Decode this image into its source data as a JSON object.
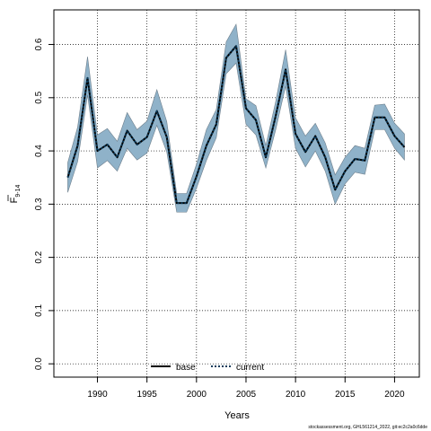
{
  "chart_data": {
    "type": "line",
    "title": "",
    "xlabel": "Years",
    "ylabel_main": "F",
    "ylabel_sub": "9-14",
    "xlim": [
      1985.6,
      2022.5
    ],
    "ylim": [
      -0.025,
      0.665
    ],
    "xticks": [
      1990,
      1995,
      2000,
      2005,
      2010,
      2015,
      2020
    ],
    "yticks": [
      0.0,
      0.1,
      0.2,
      0.3,
      0.4,
      0.5,
      0.6
    ],
    "ytick_labels": [
      "0.0",
      "0.1",
      "0.2",
      "0.3",
      "0.4",
      "0.5",
      "0.6"
    ],
    "grid": true,
    "legend_position": "bottom-center",
    "colors": {
      "ci_band": "#8fb2c9",
      "ci_edge": "#6e7f8c",
      "base": "#000000",
      "current": "#0b3a5a"
    },
    "x": [
      1987,
      1988,
      1989,
      1990,
      1991,
      1992,
      1993,
      1994,
      1995,
      1996,
      1997,
      1998,
      1999,
      2000,
      2001,
      2002,
      2003,
      2004,
      2005,
      2006,
      2007,
      2008,
      2009,
      2010,
      2011,
      2012,
      2013,
      2014,
      2015,
      2016,
      2017,
      2018,
      2019,
      2020,
      2021
    ],
    "series": [
      {
        "name": "base",
        "style": "solid",
        "values": [
          0.35,
          0.41,
          0.537,
          0.4,
          0.412,
          0.388,
          0.438,
          0.412,
          0.426,
          0.475,
          0.426,
          0.302,
          0.302,
          0.352,
          0.41,
          0.45,
          0.575,
          0.597,
          0.48,
          0.458,
          0.388,
          0.466,
          0.553,
          0.432,
          0.398,
          0.428,
          0.388,
          0.327,
          0.362,
          0.385,
          0.382,
          0.463,
          0.463,
          0.428,
          0.407
        ]
      },
      {
        "name": "current",
        "style": "dotted",
        "values": [
          0.35,
          0.41,
          0.537,
          0.4,
          0.412,
          0.388,
          0.438,
          0.412,
          0.426,
          0.475,
          0.426,
          0.302,
          0.302,
          0.352,
          0.41,
          0.45,
          0.575,
          0.597,
          0.48,
          0.458,
          0.388,
          0.466,
          0.553,
          0.432,
          0.398,
          0.428,
          0.388,
          0.327,
          0.362,
          0.385,
          0.382,
          0.463,
          0.463,
          0.428,
          0.407
        ]
      }
    ],
    "ci_lower": [
      0.322,
      0.38,
      0.505,
      0.368,
      0.382,
      0.362,
      0.405,
      0.383,
      0.396,
      0.448,
      0.398,
      0.285,
      0.285,
      0.33,
      0.382,
      0.425,
      0.545,
      0.565,
      0.45,
      0.43,
      0.368,
      0.44,
      0.522,
      0.405,
      0.37,
      0.4,
      0.362,
      0.3,
      0.338,
      0.36,
      0.356,
      0.44,
      0.44,
      0.405,
      0.383
    ],
    "ci_upper": [
      0.378,
      0.445,
      0.577,
      0.43,
      0.442,
      0.418,
      0.472,
      0.44,
      0.456,
      0.515,
      0.455,
      0.32,
      0.32,
      0.375,
      0.44,
      0.478,
      0.605,
      0.638,
      0.498,
      0.485,
      0.41,
      0.493,
      0.59,
      0.462,
      0.428,
      0.452,
      0.415,
      0.355,
      0.388,
      0.41,
      0.405,
      0.486,
      0.488,
      0.452,
      0.432
    ]
  },
  "legend": {
    "items": [
      {
        "label": "base"
      },
      {
        "label": "current"
      }
    ]
  },
  "footnote": "stockassessment.org, GHL561214_2022, git:ec2c2a0c6dde"
}
